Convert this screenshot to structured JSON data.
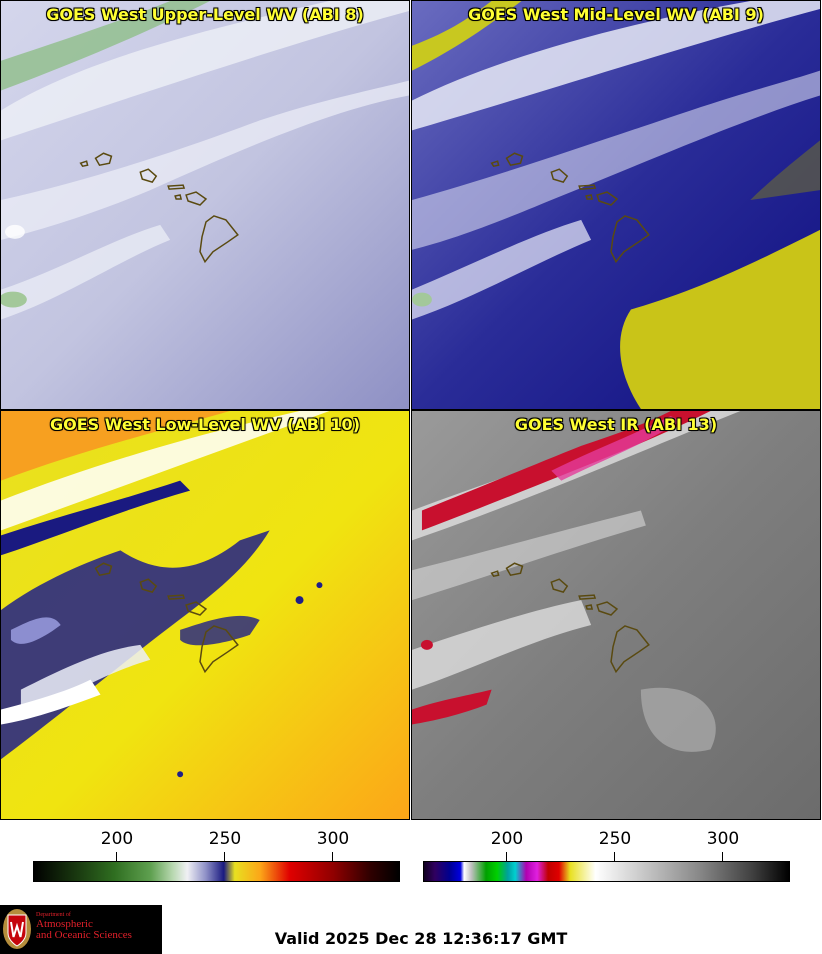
{
  "panels": [
    {
      "title": "GOES West Upper-Level WV (ABI 8)"
    },
    {
      "title": "GOES West Mid-Level WV (ABI 9)"
    },
    {
      "title": "GOES West Low-Level WV (ABI 10)"
    },
    {
      "title": "GOES West IR (ABI 13)"
    }
  ],
  "colorbar_wv": {
    "ticks": [
      "200",
      "250",
      "300"
    ]
  },
  "colorbar_ir": {
    "ticks": [
      "200",
      "250",
      "300"
    ]
  },
  "logo": {
    "line1": "Department of",
    "line2": "Atmospheric",
    "line3": "and Oceanic Sciences"
  },
  "valid_time": "Valid 2025 Dec 28 12:36:17 GMT",
  "colors": {
    "title_text": "#ffff33",
    "logo_red": "#e2202a",
    "coast": "#5a4a10"
  }
}
